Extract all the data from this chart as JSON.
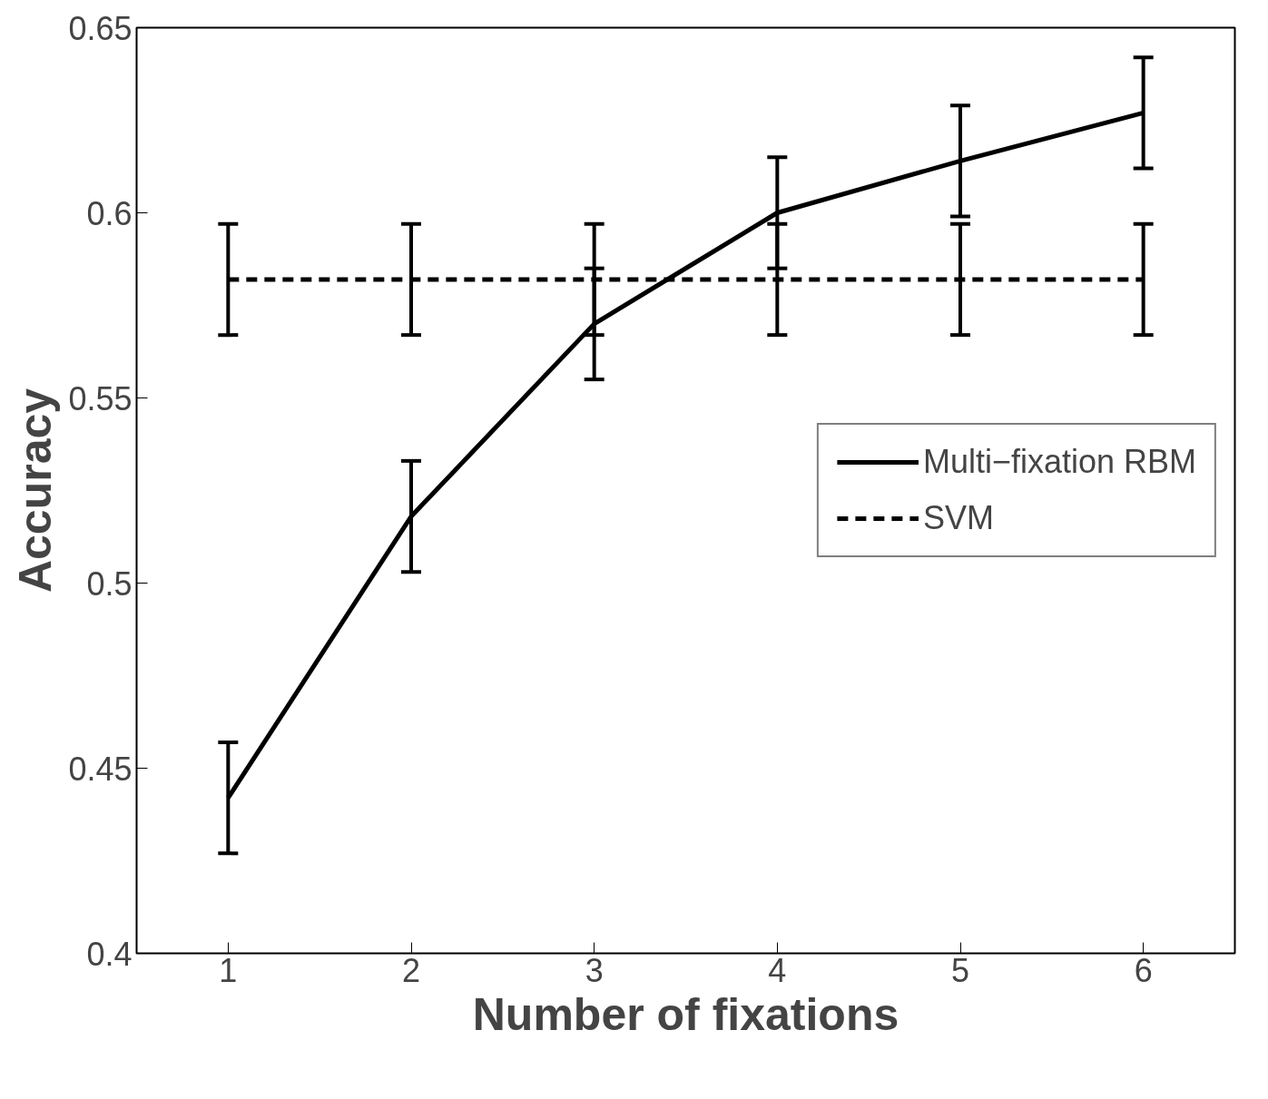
{
  "chart_data": {
    "type": "line",
    "xlabel": "Number of fixations",
    "ylabel": "Accuracy",
    "x": [
      1,
      2,
      3,
      4,
      5,
      6
    ],
    "series": [
      {
        "name": "Multi−fixation RBM",
        "color": "#000000",
        "values": [
          0.442,
          0.518,
          0.57,
          0.6,
          0.614,
          0.627
        ],
        "errors": [
          0.015,
          0.015,
          0.015,
          0.015,
          0.015,
          0.015
        ],
        "line_style": "solid"
      },
      {
        "name": "SVM",
        "color": "#000000",
        "values": [
          0.582,
          0.582,
          0.582,
          0.582,
          0.582,
          0.582
        ],
        "errors": [
          0.015,
          0.015,
          0.015,
          0.015,
          0.015,
          0.015
        ],
        "line_style": "dashed"
      }
    ],
    "xlim": [
      0.5,
      6.5
    ],
    "xticks": [
      1,
      2,
      3,
      4,
      5,
      6
    ],
    "ylim": [
      0.4,
      0.65
    ],
    "yticks": [
      0.4,
      0.45,
      0.5,
      0.55,
      0.6,
      0.65
    ],
    "grid": false,
    "legend": "right",
    "marker": "none"
  }
}
